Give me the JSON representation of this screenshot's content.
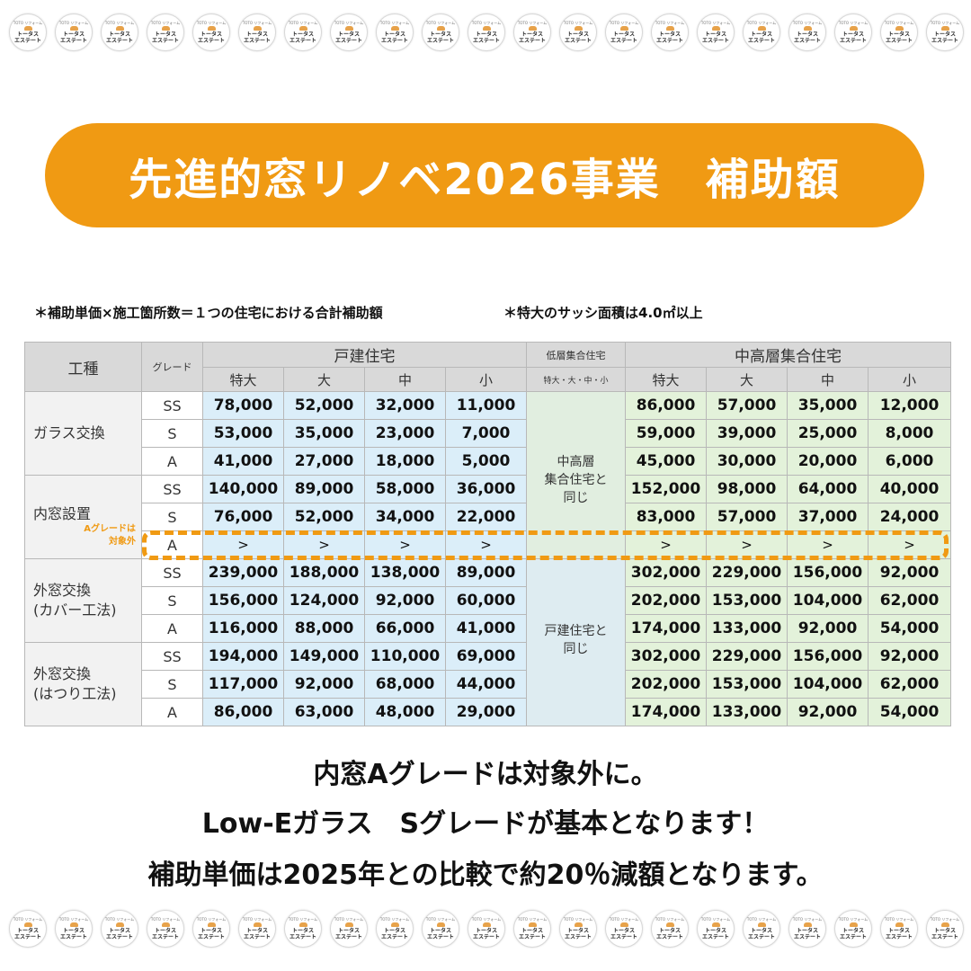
{
  "logo": {
    "arc_text": "TOTO リフォーム",
    "line1": "トータス",
    "line2": "エステート",
    "count": 21
  },
  "banner": {
    "title": "先進的窓リノベ2026事業　補助額"
  },
  "notes": {
    "formula": "＊補助単価×施工箇所数＝１つの住宅における合計補助額",
    "size": "＊特大のサッシ面積は4.0㎡以上"
  },
  "table": {
    "h_work": "工種",
    "h_grade": "グレード",
    "h_detached": "戸建住宅",
    "h_low": "低層集合住宅",
    "h_low_sizes": "特大・大・中・小",
    "h_mid": "中高層集合住宅",
    "sizes": [
      "特大",
      "大",
      "中",
      "小"
    ],
    "works": {
      "glass": "ガラス交換",
      "inner": "内窓設置",
      "inner_note_1": "Aグレードは",
      "inner_note_2": "対象外",
      "cover_1": "外窓交換",
      "cover_2": "(カバー工法)",
      "hatsuri_1": "外窓交換",
      "hatsuri_2": "(はつり工法)"
    },
    "low_note_a": [
      "中高層",
      "集合住宅と",
      "同じ"
    ],
    "low_note_b": [
      "戸建住宅と",
      "同じ"
    ],
    "rows": [
      {
        "grade": "SS",
        "detached": [
          "78,000",
          "52,000",
          "32,000",
          "11,000"
        ],
        "mid": [
          "86,000",
          "57,000",
          "35,000",
          "12,000"
        ]
      },
      {
        "grade": "S",
        "detached": [
          "53,000",
          "35,000",
          "23,000",
          "7,000"
        ],
        "mid": [
          "59,000",
          "39,000",
          "25,000",
          "8,000"
        ]
      },
      {
        "grade": "A",
        "detached": [
          "41,000",
          "27,000",
          "18,000",
          "5,000"
        ],
        "mid": [
          "45,000",
          "30,000",
          "20,000",
          "6,000"
        ]
      },
      {
        "grade": "SS",
        "detached": [
          "140,000",
          "89,000",
          "58,000",
          "36,000"
        ],
        "mid": [
          "152,000",
          "98,000",
          "64,000",
          "40,000"
        ]
      },
      {
        "grade": "S",
        "detached": [
          "76,000",
          "52,000",
          "34,000",
          "22,000"
        ],
        "mid": [
          "83,000",
          "57,000",
          "37,000",
          "24,000"
        ]
      },
      {
        "grade": "A",
        "detached": [
          ">",
          ">",
          ">",
          ">"
        ],
        "mid": [
          ">",
          ">",
          ">",
          ">"
        ]
      },
      {
        "grade": "SS",
        "detached": [
          "239,000",
          "188,000",
          "138,000",
          "89,000"
        ],
        "mid": [
          "302,000",
          "229,000",
          "156,000",
          "92,000"
        ]
      },
      {
        "grade": "S",
        "detached": [
          "156,000",
          "124,000",
          "92,000",
          "60,000"
        ],
        "mid": [
          "202,000",
          "153,000",
          "104,000",
          "62,000"
        ]
      },
      {
        "grade": "A",
        "detached": [
          "116,000",
          "88,000",
          "66,000",
          "41,000"
        ],
        "mid": [
          "174,000",
          "133,000",
          "92,000",
          "54,000"
        ]
      },
      {
        "grade": "SS",
        "detached": [
          "194,000",
          "149,000",
          "110,000",
          "69,000"
        ],
        "mid": [
          "302,000",
          "229,000",
          "156,000",
          "92,000"
        ]
      },
      {
        "grade": "S",
        "detached": [
          "117,000",
          "92,000",
          "68,000",
          "44,000"
        ],
        "mid": [
          "202,000",
          "153,000",
          "104,000",
          "62,000"
        ]
      },
      {
        "grade": "A",
        "detached": [
          "86,000",
          "63,000",
          "48,000",
          "29,000"
        ],
        "mid": [
          "174,000",
          "133,000",
          "92,000",
          "54,000"
        ]
      }
    ]
  },
  "footer": {
    "line1": "内窓Aグレードは対象外に。",
    "line2": "Low-Eガラス　Sグレードが基本となります！",
    "line3": "補助単価は2025年との比較で約20％減額となります。"
  },
  "colors": {
    "accent": "#f09a13",
    "detached_bg": "#dbeef9",
    "mid_bg": "#e3f2da",
    "header_bg": "#d9d9d9"
  }
}
